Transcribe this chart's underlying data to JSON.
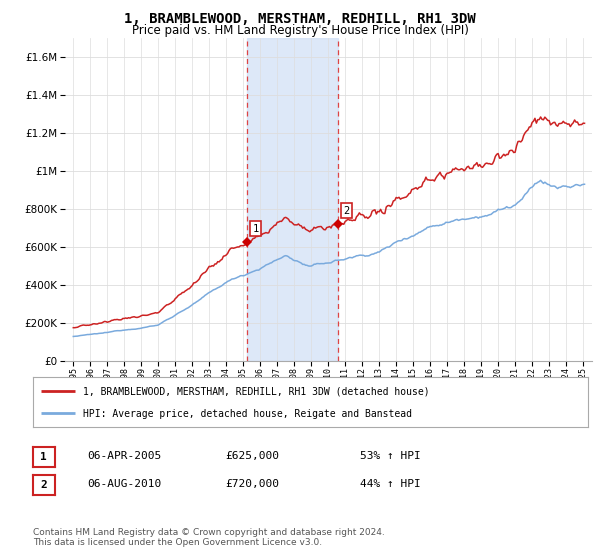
{
  "title": "1, BRAMBLEWOOD, MERSTHAM, REDHILL, RH1 3DW",
  "subtitle": "Price paid vs. HM Land Registry's House Price Index (HPI)",
  "legend_line1": "1, BRAMBLEWOOD, MERSTHAM, REDHILL, RH1 3DW (detached house)",
  "legend_line2": "HPI: Average price, detached house, Reigate and Banstead",
  "table_rows": [
    {
      "num": "1",
      "date": "06-APR-2005",
      "price": "£625,000",
      "hpi": "53% ↑ HPI"
    },
    {
      "num": "2",
      "date": "06-AUG-2010",
      "price": "£720,000",
      "hpi": "44% ↑ HPI"
    }
  ],
  "footer": "Contains HM Land Registry data © Crown copyright and database right 2024.\nThis data is licensed under the Open Government Licence v3.0.",
  "sale1_year": 2005.25,
  "sale2_year": 2010.58,
  "sale1_price": 625000,
  "sale2_price": 720000,
  "ylim_min": 0,
  "ylim_max": 1700000,
  "xlim_min": 1994.5,
  "xlim_max": 2025.5,
  "hpi_color": "#7aaadd",
  "price_color": "#cc2222",
  "sale_marker_color": "#cc0000",
  "shaded_color": "#ccddf5",
  "background_color": "#ffffff",
  "title_fontsize": 10,
  "subtitle_fontsize": 8.5
}
